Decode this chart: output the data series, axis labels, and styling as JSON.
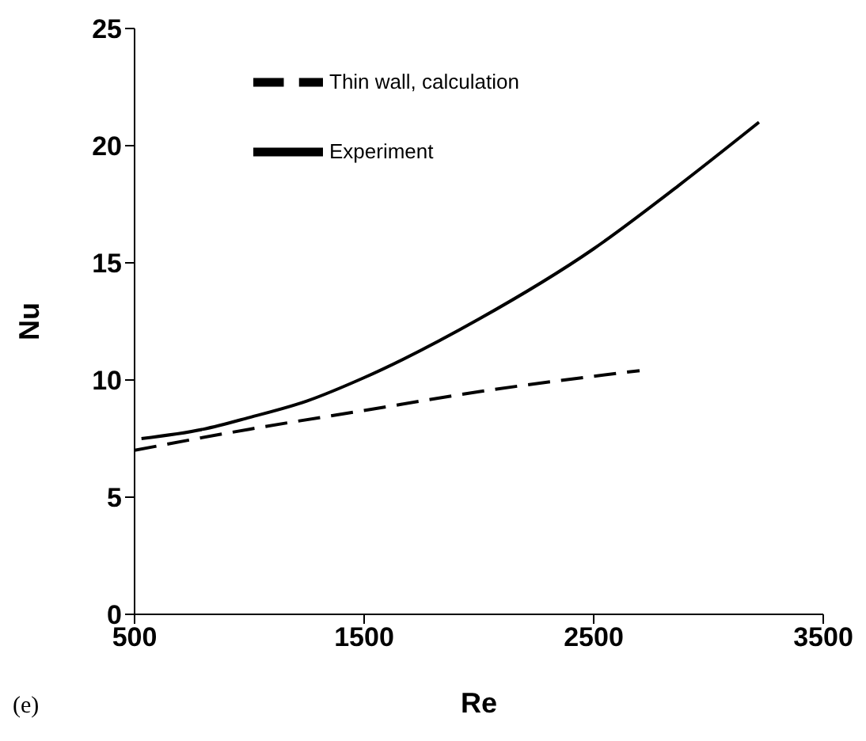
{
  "chart_data": {
    "type": "line",
    "xlabel": "Re",
    "ylabel": "Nu",
    "xlim": [
      500,
      3500
    ],
    "xticks": [
      500,
      1500,
      2500,
      3500
    ],
    "ylim": [
      0,
      25
    ],
    "yticks": [
      0,
      5,
      10,
      15,
      20,
      25
    ],
    "grid": false,
    "legend": "top",
    "marker": "none",
    "annotations": [
      "(e)"
    ],
    "series": [
      {
        "name": "Thin wall, calculation",
        "color": "#000000",
        "line_style": "dashed",
        "x": [
          500,
          1000,
          1500,
          2000,
          2700
        ],
        "values": [
          7.0,
          7.9,
          8.7,
          9.5,
          10.4
        ]
      },
      {
        "name": "Experiment",
        "color": "#000000",
        "line_style": "solid",
        "x": [
          530,
          800,
          1000,
          1250,
          1500,
          2000,
          2500,
          2870,
          3220
        ],
        "values": [
          7.5,
          7.9,
          8.4,
          9.1,
          10.1,
          12.6,
          15.6,
          18.3,
          21.0
        ]
      }
    ]
  }
}
